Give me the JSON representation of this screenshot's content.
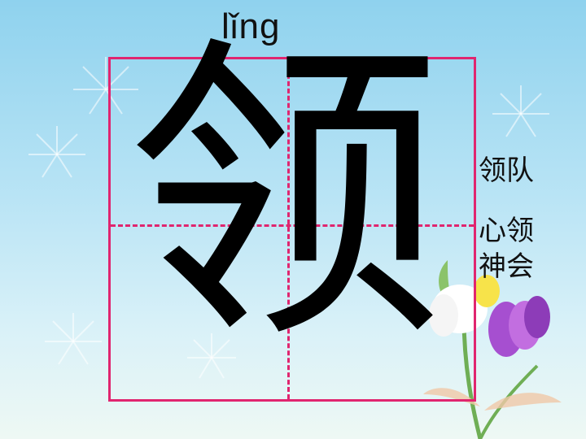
{
  "pinyin": "lǐng",
  "character": "领",
  "words": [
    "领队",
    "心领",
    "神会"
  ],
  "colors": {
    "grid": "#e0256f",
    "text": "#111111",
    "background_top": "#8fd2ee",
    "background_bottom": "#eef8f4"
  }
}
